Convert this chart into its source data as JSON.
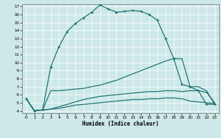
{
  "xlabel": "Humidex (Indice chaleur)",
  "xlim": [
    -0.5,
    23.5
  ],
  "ylim": [
    3.7,
    17.3
  ],
  "xticks": [
    0,
    1,
    2,
    3,
    4,
    5,
    6,
    7,
    8,
    9,
    10,
    11,
    12,
    13,
    14,
    15,
    16,
    17,
    18,
    19,
    20,
    21,
    22,
    23
  ],
  "yticks": [
    4,
    5,
    6,
    7,
    8,
    9,
    10,
    11,
    12,
    13,
    14,
    15,
    16,
    17
  ],
  "bg_color": "#cde8e8",
  "line_color": "#1a7070",
  "curve1_x": [
    0,
    1,
    2,
    3,
    4,
    5,
    6,
    7,
    8,
    9,
    10,
    11,
    12,
    13,
    14,
    15,
    16,
    17,
    18,
    19,
    20,
    21,
    22,
    23
  ],
  "curve1_y": [
    5.5,
    4.0,
    4.1,
    9.5,
    12.0,
    13.9,
    14.9,
    15.6,
    16.3,
    17.2,
    16.7,
    16.3,
    16.4,
    16.5,
    16.4,
    16.0,
    15.3,
    13.0,
    10.5,
    7.3,
    7.0,
    6.5,
    4.8,
    4.8
  ],
  "curve1_markers": [
    0,
    1,
    2,
    3,
    4,
    5,
    6,
    7,
    8,
    9,
    10,
    11,
    12,
    13,
    14,
    15,
    16,
    17,
    18,
    19,
    20,
    21,
    22,
    23
  ],
  "curve2_x": [
    0,
    1,
    2,
    3,
    4,
    5,
    6,
    7,
    8,
    9,
    10,
    11,
    12,
    13,
    14,
    15,
    16,
    17,
    18,
    19,
    20,
    21,
    22,
    23
  ],
  "curve2_y": [
    5.5,
    4.0,
    4.1,
    6.5,
    6.5,
    6.6,
    6.7,
    6.8,
    7.0,
    7.2,
    7.5,
    7.8,
    8.2,
    8.6,
    9.0,
    9.4,
    9.8,
    10.2,
    10.5,
    10.5,
    7.0,
    7.0,
    6.5,
    4.8
  ],
  "curve3_x": [
    0,
    1,
    2,
    3,
    4,
    5,
    6,
    7,
    8,
    9,
    10,
    11,
    12,
    13,
    14,
    15,
    16,
    17,
    18,
    19,
    20,
    21,
    22,
    23
  ],
  "curve3_y": [
    5.5,
    4.0,
    4.1,
    4.2,
    4.5,
    4.8,
    5.1,
    5.4,
    5.6,
    5.8,
    5.9,
    6.0,
    6.1,
    6.2,
    6.3,
    6.4,
    6.4,
    6.5,
    6.5,
    6.4,
    6.5,
    6.5,
    6.3,
    5.0
  ],
  "curve4_x": [
    0,
    1,
    2,
    3,
    4,
    5,
    6,
    7,
    8,
    9,
    10,
    11,
    12,
    13,
    14,
    15,
    16,
    17,
    18,
    19,
    20,
    21,
    22,
    23
  ],
  "curve4_y": [
    5.5,
    4.0,
    4.1,
    4.2,
    4.3,
    4.5,
    4.7,
    4.8,
    4.9,
    5.0,
    5.1,
    5.2,
    5.3,
    5.4,
    5.4,
    5.5,
    5.5,
    5.6,
    5.6,
    5.5,
    5.2,
    5.1,
    5.0,
    4.9
  ]
}
